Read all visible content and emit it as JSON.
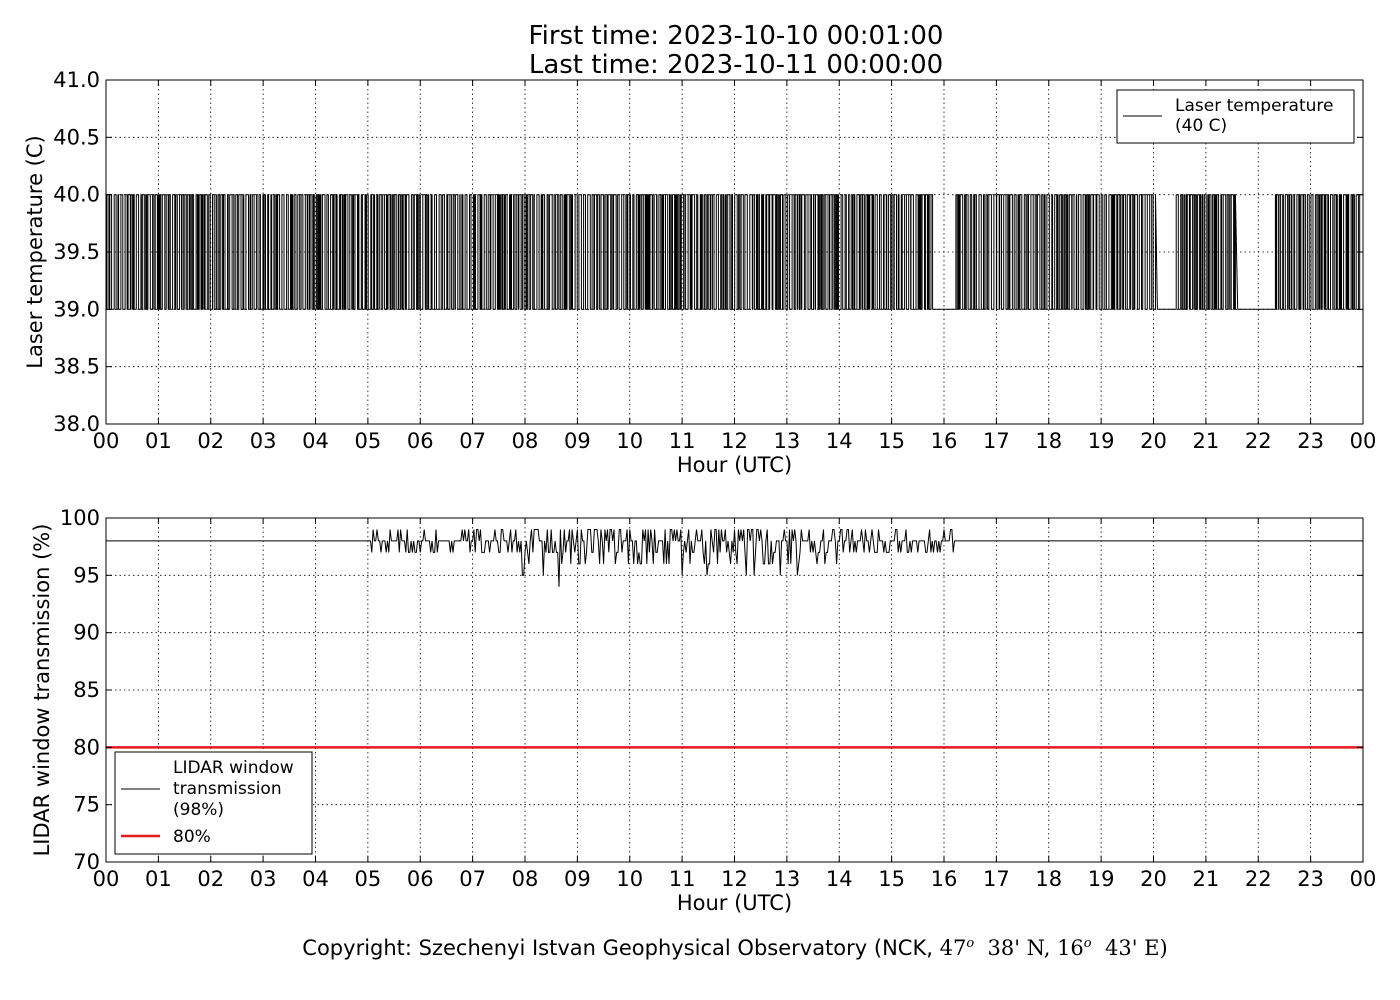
{
  "header": {
    "line1": "First time: 2023-10-10 00:01:00",
    "line2": "Last time: 2023-10-11 00:00:00"
  },
  "footer": {
    "prefix": "Copyright: Szechenyi Istvan Geophysical Observatory (NCK, ",
    "lat_deg": "47",
    "lat_rest": "38' N, ",
    "lon_deg": "16",
    "lon_rest": "43' E)",
    "deg_mark": "o"
  },
  "chart_data": [
    {
      "type": "line",
      "xlabel": "Hour (UTC)",
      "ylabel": "Laser temperature (C)",
      "xlim": [
        0,
        24
      ],
      "ylim": [
        38.0,
        41.0
      ],
      "xtick_labels": [
        "00",
        "01",
        "02",
        "03",
        "04",
        "05",
        "06",
        "07",
        "08",
        "09",
        "10",
        "11",
        "12",
        "13",
        "14",
        "15",
        "16",
        "17",
        "18",
        "19",
        "20",
        "21",
        "22",
        "23",
        "00"
      ],
      "ytick_labels": [
        "38.0",
        "38.5",
        "39.0",
        "39.5",
        "40.0",
        "40.5",
        "41.0"
      ],
      "yticks": [
        38.0,
        38.5,
        39.0,
        39.5,
        40.0,
        40.5,
        41.0
      ],
      "grid": true,
      "legend_position": "top-right",
      "series": [
        {
          "name": "Laser temperature\n(40 C)",
          "color": "#000000",
          "values_range": [
            39.0,
            40.0
          ],
          "description": "dense oscillation between 39.0 and 40.0 with gaps at 39.0 around 15.8-16.2 h, 20.0-20.4 h and 21.6-22.3 h"
        }
      ]
    },
    {
      "type": "line",
      "xlabel": "Hour (UTC)",
      "ylabel": "LIDAR window transmission (%)",
      "xlim": [
        0,
        24
      ],
      "ylim": [
        70,
        100
      ],
      "xtick_labels": [
        "00",
        "01",
        "02",
        "03",
        "04",
        "05",
        "06",
        "07",
        "08",
        "09",
        "10",
        "11",
        "12",
        "13",
        "14",
        "15",
        "16",
        "17",
        "18",
        "19",
        "20",
        "21",
        "22",
        "23",
        "00"
      ],
      "ytick_labels": [
        "70",
        "75",
        "80",
        "85",
        "90",
        "95",
        "100"
      ],
      "yticks": [
        70,
        75,
        80,
        85,
        90,
        95,
        100
      ],
      "grid": true,
      "legend_position": "bottom-left",
      "series": [
        {
          "name": "LIDAR window\ntransmission\n(98%)",
          "color": "#000000",
          "baseline": 98,
          "noisy_interval": [
            4.9,
            16.3
          ],
          "min_value": 94
        },
        {
          "name": "80%",
          "color": "#e41a1c",
          "constant": 80
        }
      ]
    }
  ]
}
